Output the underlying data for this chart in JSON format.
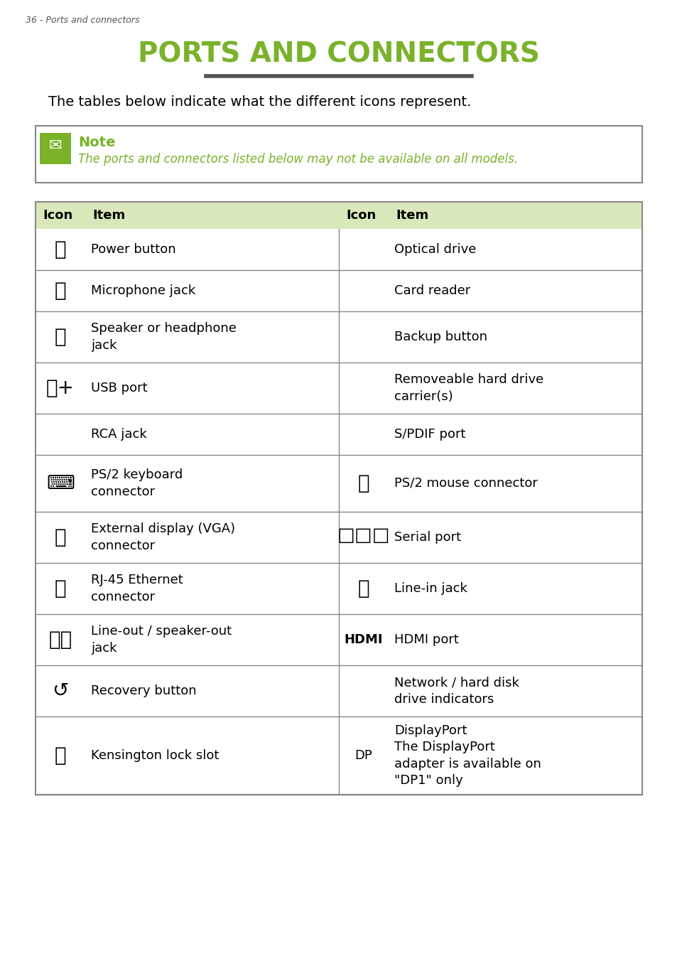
{
  "page_label": "36 - Ports and connectors",
  "title_line1": "PORTS AND CONNECTORS",
  "underline_color": "#555555",
  "body_text": "The tables below indicate what the different icons represent.",
  "note_title": "Note",
  "note_text": "The ports and connectors listed below may not be available on all models.",
  "green_color": "#7AB22A",
  "header_bg": "#D9E8BB",
  "table_border": "#888888",
  "text_color": "#1a1a1a",
  "rows": [
    {
      "left_icon": "⏻",
      "left_item": "Power button",
      "right_icon": "",
      "right_item": "Optical drive"
    },
    {
      "left_icon": "🎤",
      "left_item": "Microphone jack",
      "right_icon": "",
      "right_item": "Card reader"
    },
    {
      "left_icon": "🎧",
      "left_item": "Speaker or headphone\njack",
      "right_icon": "",
      "right_item": "Backup button"
    },
    {
      "left_icon": "⭘+",
      "left_item": "USB port",
      "right_icon": "",
      "right_item": "Removeable hard drive\ncarrier(s)"
    },
    {
      "left_icon": "",
      "left_item": "RCA jack",
      "right_icon": "",
      "right_item": "S/PDIF port"
    },
    {
      "left_icon": "⌨",
      "left_item": "PS/2 keyboard\nconnector",
      "right_icon": "🖱",
      "right_item": "PS/2 mouse connector"
    },
    {
      "left_icon": "🖥",
      "left_item": "External display (VGA)\nconnector",
      "right_icon": "☐☐☐",
      "right_item": "Serial port"
    },
    {
      "left_icon": "📶",
      "left_item": "RJ-45 Ethernet\nconnector",
      "right_icon": "⦾",
      "right_item": "Line-in jack"
    },
    {
      "left_icon": "⦾⦾",
      "left_item": "Line-out / speaker-out\njack",
      "right_icon": "HDMI",
      "right_item": "HDMI port"
    },
    {
      "left_icon": "↺",
      "left_item": "Recovery button",
      "right_icon": "",
      "right_item": "Network / hard disk\ndrive indicators"
    },
    {
      "left_icon": "🔒",
      "left_item": "Kensington lock slot",
      "right_icon": "DP",
      "right_item": "DisplayPort\nThe DisplayPort\nadapter is available on\n\"DP1\" only"
    }
  ]
}
